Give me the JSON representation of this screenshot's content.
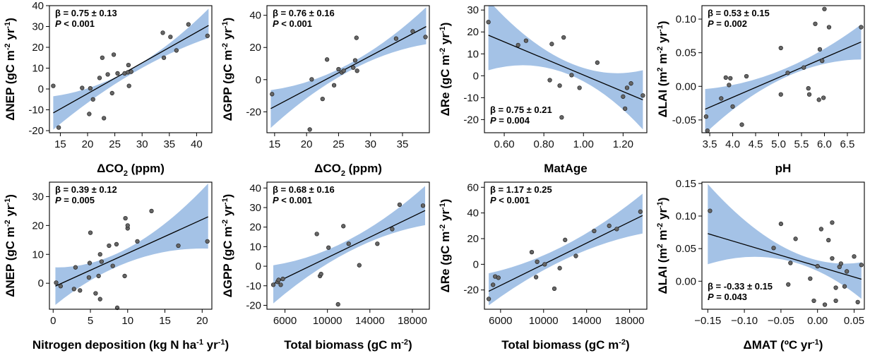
{
  "chart_data": [
    {
      "type": "scatter",
      "xlabel": "ΔCO2 (ppm)",
      "xlabel_main": "ΔCO",
      "xlabel_sub": "2",
      "xlabel_end": " (ppm)",
      "ylabel": "ΔNEP (gC m-2 yr-1)",
      "ylabel_parts": [
        "ΔNEP (gC m",
        "-2",
        " yr",
        "-1",
        ")"
      ],
      "beta_text": "β = 0.75 ± 0.13",
      "p_value": "< 0.001",
      "p_label": "P",
      "stats_position": "top-left",
      "xlim": [
        13,
        42.8
      ],
      "ylim": [
        -21,
        40
      ],
      "xticks": [
        15,
        20,
        25,
        30,
        35,
        40
      ],
      "yticks": [
        -20,
        -10,
        0,
        10,
        20,
        30,
        40
      ],
      "fit": {
        "x": [
          13.7,
          42.2
        ],
        "y": [
          -11.5,
          30.5
        ]
      },
      "band": {
        "x": [
          13.7,
          27.9,
          42.2
        ],
        "lower": [
          -19.5,
          7,
          24.5
        ],
        "upper": [
          -3.5,
          9.5,
          38.5
        ]
      },
      "points": [
        [
          13.7,
          1.5
        ],
        [
          14.7,
          -18.5
        ],
        [
          19,
          0.5
        ],
        [
          20.3,
          -12
        ],
        [
          20.5,
          0.3
        ],
        [
          21,
          -5
        ],
        [
          22.2,
          5.3
        ],
        [
          22.7,
          15
        ],
        [
          23,
          -14
        ],
        [
          23.7,
          7
        ],
        [
          24.5,
          -2
        ],
        [
          24.8,
          16.5
        ],
        [
          25.5,
          7.5
        ],
        [
          26.8,
          7.5
        ],
        [
          27.4,
          8
        ],
        [
          27.5,
          11.5
        ],
        [
          27.6,
          1.5
        ],
        [
          28,
          8.3
        ],
        [
          33.8,
          27
        ],
        [
          34,
          15
        ],
        [
          35.2,
          25
        ],
        [
          36.3,
          18.5
        ],
        [
          38.5,
          31
        ],
        [
          42,
          25.5
        ]
      ]
    },
    {
      "type": "scatter",
      "xlabel": "ΔCO2 (ppm)",
      "xlabel_main": "ΔCO",
      "xlabel_sub": "2",
      "xlabel_end": " (ppm)",
      "ylabel": "ΔGPP (gC m-2 yr-1)",
      "ylabel_parts": [
        "ΔGPP (gC m",
        "-2",
        " yr",
        "-1",
        ")"
      ],
      "beta_text": "β = 0.76 ± 0.16",
      "p_value": "< 0.001",
      "p_label": "P",
      "stats_position": "top-left",
      "xlim": [
        13.8,
        39.2
      ],
      "ylim": [
        -33,
        46
      ],
      "xticks": [
        15,
        20,
        25,
        30,
        35
      ],
      "yticks": [
        -20,
        0,
        20,
        40
      ],
      "fit": {
        "x": [
          14.4,
          38.7
        ],
        "y": [
          -18,
          33
        ]
      },
      "band": {
        "x": [
          14.4,
          26.5,
          38.7
        ],
        "lower": [
          -30,
          5,
          22
        ],
        "upper": [
          -6.5,
          9.5,
          45
        ]
      },
      "points": [
        [
          14.6,
          -9
        ],
        [
          20.5,
          -31
        ],
        [
          20.8,
          0.2
        ],
        [
          22.5,
          -12
        ],
        [
          23.2,
          12.5
        ],
        [
          24.3,
          -3.5
        ],
        [
          25,
          6.5
        ],
        [
          25.5,
          4.5
        ],
        [
          25.8,
          5.5
        ],
        [
          27.3,
          7.5
        ],
        [
          27.6,
          12
        ],
        [
          27.8,
          26
        ],
        [
          27.9,
          5.5
        ],
        [
          34,
          25.5
        ],
        [
          36.6,
          30
        ],
        [
          38.6,
          26.5
        ]
      ]
    },
    {
      "type": "scatter",
      "xlabel": "MatAge",
      "xlabel_main": "MatAge",
      "xlabel_sub": "",
      "xlabel_end": "",
      "ylabel": "ΔRe (gC m-2 yr-1)",
      "ylabel_parts": [
        "ΔRe (gC m",
        "-2",
        " yr",
        "-1",
        ")"
      ],
      "beta_text": "β = 0.75 ± 0.21",
      "p_value": "= 0.004",
      "p_label": "P",
      "stats_position": "bottom-left",
      "xlim": [
        0.5,
        1.32
      ],
      "ylim": [
        -26,
        32
      ],
      "xticks": [
        0.6,
        0.8,
        1.0,
        1.2
      ],
      "yticks": [
        -20,
        -10,
        0,
        10,
        20,
        30
      ],
      "fit": {
        "x": [
          0.52,
          1.3
        ],
        "y": [
          18.5,
          -11
        ]
      },
      "band": {
        "x": [
          0.52,
          0.92,
          1.3
        ],
        "lower": [
          2.5,
          1,
          -24.5
        ],
        "upper": [
          34.5,
          6.5,
          2.5
        ]
      },
      "points": [
        [
          0.52,
          24.5
        ],
        [
          0.67,
          14
        ],
        [
          0.71,
          16
        ],
        [
          0.83,
          -2
        ],
        [
          0.84,
          14.5
        ],
        [
          0.88,
          -4.5
        ],
        [
          0.89,
          -19
        ],
        [
          0.9,
          17.5
        ],
        [
          0.94,
          0.3
        ],
        [
          0.98,
          -5.5
        ],
        [
          1.07,
          6
        ],
        [
          1.2,
          -9.5
        ],
        [
          1.21,
          -15
        ],
        [
          1.22,
          -5.5
        ],
        [
          1.24,
          -3.5
        ],
        [
          1.3,
          -9
        ]
      ]
    },
    {
      "type": "scatter",
      "xlabel": "pH",
      "xlabel_main": "pH",
      "xlabel_sub": "",
      "xlabel_end": "",
      "ylabel": "ΔLAI (m2 m-2 yr-1)",
      "ylabel_parts": [
        "ΔLAI (m",
        "2",
        " m",
        "-2",
        " yr",
        "-1",
        ")"
      ],
      "beta_text": "β = 0.53 ± 0.15",
      "p_value": "= 0.002",
      "p_label": "P",
      "stats_position": "top-left",
      "xlim": [
        3.33,
        6.87
      ],
      "ylim": [
        -0.069,
        0.12
      ],
      "xticks": [
        3.5,
        4.0,
        4.5,
        5.0,
        5.5,
        6.0,
        6.5
      ],
      "yticks": [
        -0.05,
        0.0,
        0.05,
        0.1
      ],
      "fit": {
        "x": [
          3.4,
          6.8
        ],
        "y": [
          -0.034,
          0.066
        ]
      },
      "band": {
        "x": [
          3.4,
          5.1,
          6.8
        ],
        "lower": [
          -0.07,
          0.012,
          0.04
        ],
        "upper": [
          -0.004,
          0.025,
          0.092
        ]
      },
      "points": [
        [
          3.42,
          -0.045
        ],
        [
          3.45,
          -0.066
        ],
        [
          3.75,
          -0.018
        ],
        [
          3.85,
          0.013
        ],
        [
          3.92,
          0.002
        ],
        [
          3.95,
          0.012
        ],
        [
          4.0,
          -0.03
        ],
        [
          4.2,
          -0.057
        ],
        [
          4.3,
          0.015
        ],
        [
          5.05,
          0.057
        ],
        [
          5.05,
          -0.012
        ],
        [
          5.2,
          0.02
        ],
        [
          5.55,
          0.028
        ],
        [
          5.65,
          -0.003
        ],
        [
          5.67,
          -0.012
        ],
        [
          5.8,
          0.093
        ],
        [
          5.88,
          -0.02
        ],
        [
          5.9,
          0.055
        ],
        [
          5.95,
          0.038
        ],
        [
          5.98,
          -0.017
        ],
        [
          6.0,
          0.115
        ],
        [
          6.1,
          0.088
        ],
        [
          6.8,
          0.088
        ]
      ]
    },
    {
      "type": "scatter",
      "xlabel": "Nitrogen deposition (kg N ha-1 yr-1)",
      "xlabel_main": "Nitrogen deposition (kg N ha",
      "xlabel_sup": "-1",
      "xlabel_mid": " yr",
      "xlabel_sup2": "-1",
      "xlabel_end": ")",
      "ylabel": "ΔNEP (gC m-2 yr-1)",
      "ylabel_parts": [
        "ΔNEP (gC m",
        "-2",
        " yr",
        "-1",
        ")"
      ],
      "beta_text": "β = 0.39 ± 0.12",
      "p_value": "= 0.005",
      "p_label": "P",
      "stats_position": "top-left",
      "xlim": [
        -0.5,
        21.3
      ],
      "ylim": [
        -9,
        35
      ],
      "xticks": [
        0,
        5,
        10,
        15,
        20
      ],
      "yticks": [
        0,
        10,
        20,
        30
      ],
      "fit": {
        "x": [
          0.3,
          20.8
        ],
        "y": [
          -1,
          23
        ]
      },
      "band": {
        "x": [
          0.3,
          10,
          20.8
        ],
        "lower": [
          -7.5,
          7.5,
          12
        ],
        "upper": [
          5.5,
          12.5,
          34.5
        ]
      },
      "points": [
        [
          0.4,
          0.2
        ],
        [
          1,
          -1
        ],
        [
          2.8,
          -2
        ],
        [
          3,
          5.5
        ],
        [
          3.6,
          -2.5
        ],
        [
          4.8,
          2
        ],
        [
          4.9,
          7
        ],
        [
          5,
          17.5
        ],
        [
          5.7,
          -3.5
        ],
        [
          6.1,
          2.5
        ],
        [
          6.3,
          10
        ],
        [
          6.3,
          -5.5
        ],
        [
          6.5,
          7.5
        ],
        [
          7.5,
          13
        ],
        [
          8,
          6
        ],
        [
          8.5,
          13.5
        ],
        [
          8.6,
          -8.5
        ],
        [
          9.6,
          2.5
        ],
        [
          9.7,
          22.5
        ],
        [
          10,
          19
        ],
        [
          10,
          20
        ],
        [
          11.3,
          14.5
        ],
        [
          13.2,
          25
        ],
        [
          16.8,
          13
        ],
        [
          20.7,
          14.5
        ]
      ]
    },
    {
      "type": "scatter",
      "xlabel": "Total biomass (gC m-2)",
      "xlabel_main": "Total biomass (gC m",
      "xlabel_sup": "-2",
      "xlabel_end": ")",
      "ylabel": "ΔGPP (gC m-2 yr-1)",
      "ylabel_parts": [
        "ΔGPP (gC m",
        "-2",
        " yr",
        "-1",
        ")"
      ],
      "beta_text": "β = 0.68 ± 0.16",
      "p_value": "< 0.001",
      "p_label": "P",
      "stats_position": "top-left",
      "xlim": [
        4300,
        19600
      ],
      "ylim": [
        -22,
        43
      ],
      "xticks": [
        6000,
        10000,
        14000,
        18000
      ],
      "yticks": [
        -20,
        -10,
        0,
        10,
        20,
        30,
        40
      ],
      "fit": {
        "x": [
          4900,
          19200
        ],
        "y": [
          -9,
          28.5
        ]
      },
      "band": {
        "x": [
          4900,
          12000,
          19200
        ],
        "lower": [
          -19,
          7.5,
          21
        ],
        "upper": [
          0.5,
          13.5,
          41
        ]
      },
      "points": [
        [
          4900,
          -9.5
        ],
        [
          5300,
          -8
        ],
        [
          5400,
          -7
        ],
        [
          5600,
          -9.5
        ],
        [
          5800,
          -6.5
        ],
        [
          9000,
          16.5
        ],
        [
          9300,
          -5
        ],
        [
          9400,
          -4
        ],
        [
          10100,
          9.5
        ],
        [
          11000,
          -19.5
        ],
        [
          11500,
          20.5
        ],
        [
          12000,
          11.5
        ],
        [
          13000,
          0.5
        ],
        [
          14700,
          11.5
        ],
        [
          16100,
          19
        ],
        [
          16800,
          31.5
        ],
        [
          19000,
          31
        ]
      ]
    },
    {
      "type": "scatter",
      "xlabel": "Total biomass (gC m-2)",
      "xlabel_main": "Total biomass (gC m",
      "xlabel_sup": "-2",
      "xlabel_end": ")",
      "ylabel": "ΔRe (gC m-2 yr-1)",
      "ylabel_parts": [
        "ΔRe (gC m",
        "-2",
        " yr",
        "-1",
        ")"
      ],
      "beta_text": "β = 1.17 ± 0.25",
      "p_value": "< 0.001",
      "p_label": "P",
      "stats_position": "top-left",
      "xlim": [
        4500,
        19600
      ],
      "ylim": [
        -35,
        64
      ],
      "xticks": [
        6000,
        10000,
        14000,
        18000
      ],
      "yticks": [
        -20,
        0,
        20,
        40,
        60
      ],
      "fit": {
        "x": [
          4900,
          19200
        ],
        "y": [
          -21,
          38
        ]
      },
      "band": {
        "x": [
          4900,
          12000,
          19200
        ],
        "lower": [
          -32,
          4,
          24
        ],
        "upper": [
          -7,
          15,
          55
        ]
      },
      "points": [
        [
          4900,
          -27
        ],
        [
          5300,
          -16
        ],
        [
          5500,
          -9.5
        ],
        [
          5800,
          -10.5
        ],
        [
          8900,
          9.5
        ],
        [
          9300,
          -10
        ],
        [
          9400,
          2
        ],
        [
          10100,
          0
        ],
        [
          11000,
          -19
        ],
        [
          11500,
          -3
        ],
        [
          12000,
          19
        ],
        [
          13000,
          6.5
        ],
        [
          14700,
          26
        ],
        [
          16100,
          30
        ],
        [
          16800,
          27.5
        ],
        [
          19000,
          41
        ]
      ]
    },
    {
      "type": "scatter",
      "xlabel": "ΔMAT (ºC yr-1)",
      "xlabel_main": "ΔMAT (ºC yr",
      "xlabel_sup": "-1",
      "xlabel_end": ")",
      "ylabel": "ΔLAI (m2 m-2 yr-1)",
      "ylabel_parts": [
        "ΔLAI (m",
        "2",
        " m",
        "-2",
        " yr",
        "-1",
        ")"
      ],
      "beta_text": "β = -0.33 ± 0.15",
      "p_value": "= 0.043",
      "p_label": "P",
      "stats_position": "bottom-left",
      "xlim": [
        -0.158,
        0.064
      ],
      "ylim": [
        -0.043,
        0.152
      ],
      "xticks": [
        -0.15,
        -0.1,
        -0.05,
        0.0,
        0.05
      ],
      "xtick_labels": [
        "−0.15",
        "−0.10",
        "−0.05",
        "0.00",
        "0.05"
      ],
      "yticks": [
        0.0,
        0.05,
        0.1,
        0.15
      ],
      "fit": {
        "x": [
          -0.15,
          0.06
        ],
        "y": [
          0.073,
          0.003
        ]
      },
      "band": {
        "x": [
          -0.15,
          -0.04,
          0.06
        ],
        "lower": [
          0.026,
          0.032,
          -0.027
        ],
        "upper": [
          0.149,
          0.05,
          0.029
        ]
      },
      "points": [
        [
          -0.147,
          0.108
        ],
        [
          -0.06,
          0.051
        ],
        [
          -0.05,
          0.088
        ],
        [
          -0.04,
          -0.005
        ],
        [
          -0.037,
          0.028
        ],
        [
          -0.03,
          0.065
        ],
        [
          -0.01,
          0.004
        ],
        [
          -0.005,
          -0.03
        ],
        [
          0.0,
          0.023
        ],
        [
          0.005,
          0.08
        ],
        [
          0.01,
          -0.036
        ],
        [
          0.015,
          0.063
        ],
        [
          0.02,
          0.09
        ],
        [
          0.02,
          0.035
        ],
        [
          0.025,
          -0.01
        ],
        [
          0.025,
          -0.03
        ],
        [
          0.03,
          0.022
        ],
        [
          0.032,
          0.027
        ],
        [
          0.037,
          -0.008
        ],
        [
          0.04,
          0.015
        ],
        [
          0.05,
          0.038
        ],
        [
          0.055,
          -0.032
        ],
        [
          0.06,
          0.025
        ]
      ]
    }
  ]
}
